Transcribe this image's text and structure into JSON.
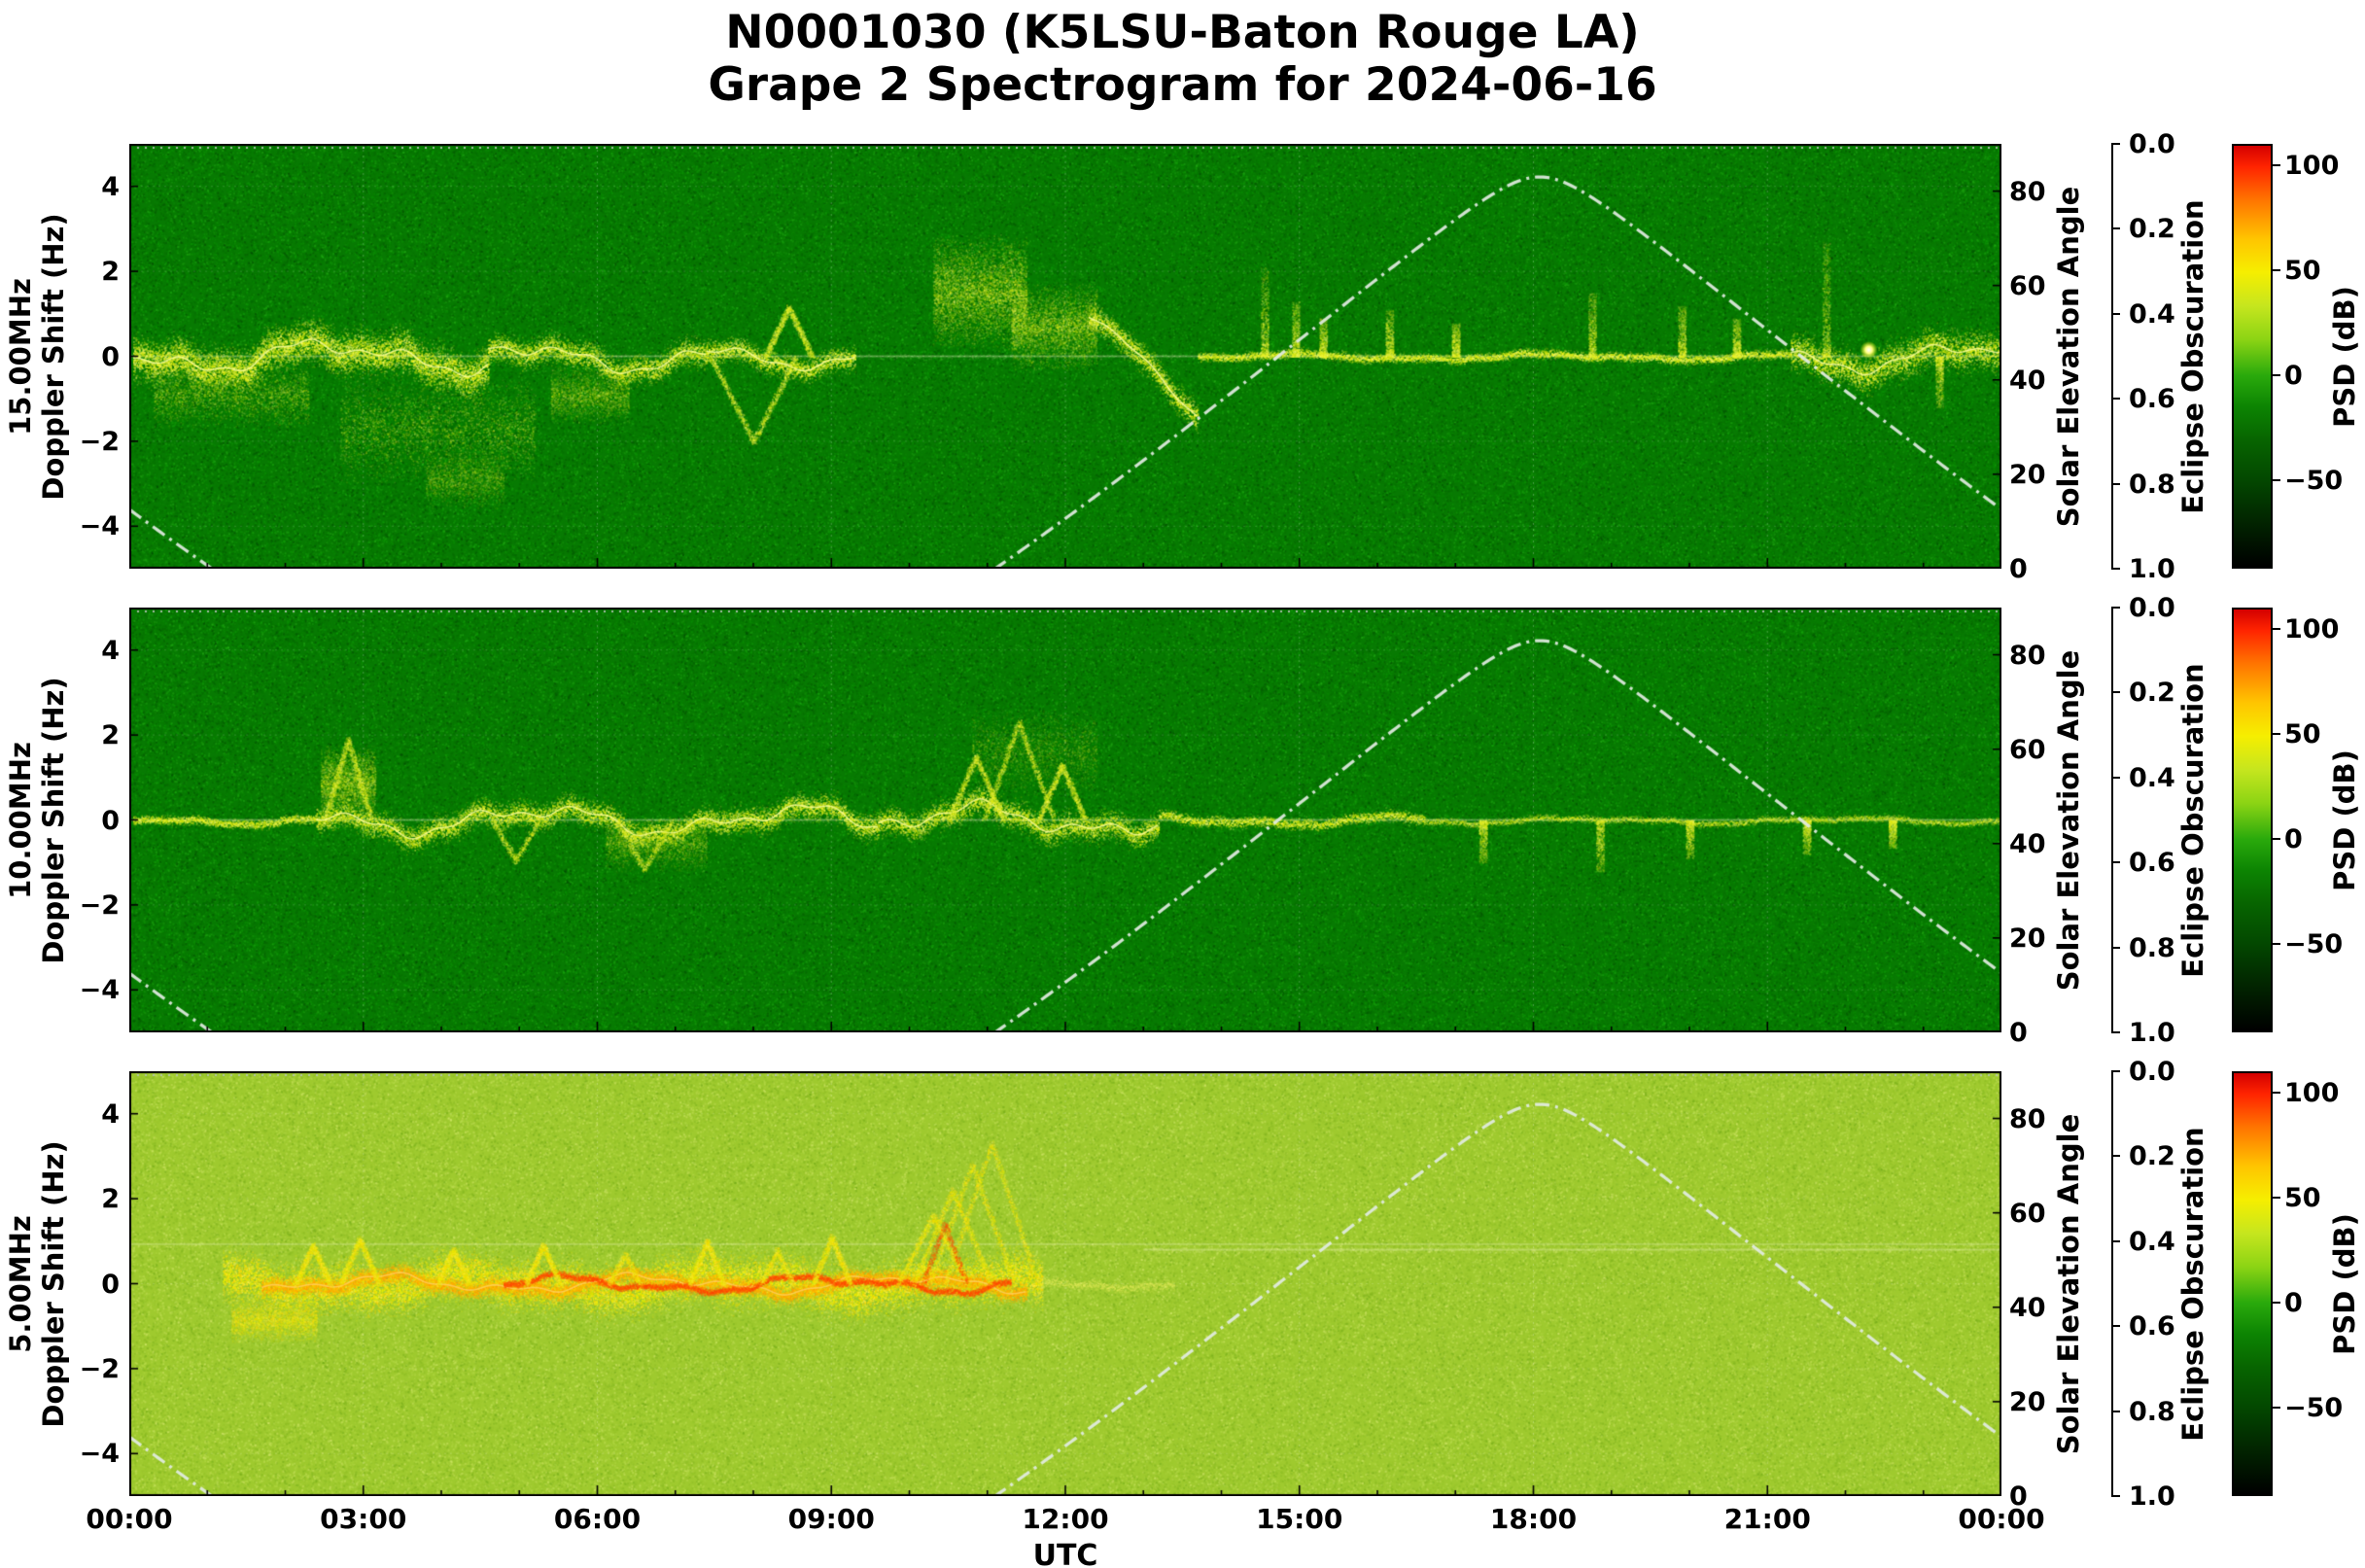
{
  "title": {
    "line1": "N0001030 (K5LSU-Baton Rouge LA)",
    "line2": "Grape 2 Spectrogram for 2024-06-16"
  },
  "x_axis": {
    "label": "UTC",
    "ticks": [
      "00:00",
      "03:00",
      "06:00",
      "09:00",
      "12:00",
      "15:00",
      "18:00",
      "21:00",
      "00:00"
    ],
    "tick_hours": [
      0,
      3,
      6,
      9,
      12,
      15,
      18,
      21,
      24
    ],
    "range_hours": [
      0,
      24
    ],
    "minor_tick_hours": 1
  },
  "right_axes": {
    "solar": {
      "label": "Solar Elevation Angle",
      "ticks": [
        0,
        20,
        40,
        60,
        80
      ],
      "lim": [
        0,
        90
      ]
    },
    "eclipse": {
      "label": "Eclipse Obscuration",
      "ticks": [
        "0.0",
        "0.2",
        "0.4",
        "0.6",
        "0.8",
        "1.0"
      ],
      "lim": [
        0,
        1
      ],
      "inverted": true
    }
  },
  "colorbar": {
    "label": "PSD (dB)",
    "ticks": [
      100,
      50,
      0,
      -50
    ],
    "vmin": -92,
    "vmax": 110,
    "gradient_stops": [
      [
        0,
        "#d40000"
      ],
      [
        0.05,
        "#ff2400"
      ],
      [
        0.13,
        "#ff7600"
      ],
      [
        0.22,
        "#ffc400"
      ],
      [
        0.3,
        "#f6ee00"
      ],
      [
        0.38,
        "#c6e61e"
      ],
      [
        0.46,
        "#8cd414"
      ],
      [
        0.545,
        "#2aaa0c"
      ],
      [
        0.62,
        "#0c8402"
      ],
      [
        0.7,
        "#076400"
      ],
      [
        0.787,
        "#034a00"
      ],
      [
        0.86,
        "#023000"
      ],
      [
        0.93,
        "#011800"
      ],
      [
        1,
        "#000000"
      ]
    ]
  },
  "solar_overlay": {
    "style": "dash-dot",
    "color": "#e2ece2",
    "model": {
      "latitude_deg": 30.4,
      "declination_deg": 23.4,
      "solar_noon_utc_h": 18.08
    },
    "keypoints_utc_elev": [
      [
        0,
        12
      ],
      [
        1.1,
        0
      ],
      [
        11.1,
        0
      ],
      [
        14,
        45
      ],
      [
        18.1,
        83
      ],
      [
        22,
        45
      ],
      [
        24,
        12
      ]
    ]
  },
  "eclipse_overlay": {
    "style": "dotted",
    "color": "#b6c2b6",
    "obscuration_value": 0.0
  },
  "chart_data": [
    {
      "type": "heatmap",
      "band_label": "15.00MHz",
      "ylabel": "Doppler Shift (Hz)",
      "ylim": [
        -5,
        5
      ],
      "yticks": [
        -4,
        -2,
        0,
        2,
        4
      ],
      "base_color": "#077a02",
      "speckle_colors": [
        "#0a9406",
        "#045c00",
        "#12a80a",
        "#033f00",
        "#2ab81a",
        "#066a00"
      ],
      "trace_colors": [
        "#eef216",
        "#d8ec10",
        "#f6fa70"
      ],
      "line_color": "#fbffa0",
      "features": [
        {
          "type": "faintline",
          "x0": 0,
          "x1": 24,
          "y": 0,
          "alpha": 0.3
        },
        {
          "type": "trace",
          "x0": 0.05,
          "x1": 4.6,
          "amp": 0.5,
          "spread": 0.45,
          "density": 22,
          "line": true,
          "seed": 3
        },
        {
          "type": "cloud",
          "x0": 0.3,
          "x1": 2.3,
          "yc": -0.9,
          "ry": 0.8,
          "density": 5,
          "alpha": 0.4
        },
        {
          "type": "cloud",
          "x0": 2.7,
          "x1": 5.2,
          "yc": -1.7,
          "ry": 1.3,
          "density": 6,
          "alpha": 0.42
        },
        {
          "type": "cloud",
          "x0": 3.8,
          "x1": 4.8,
          "yc": -2.9,
          "ry": 0.7,
          "density": 3,
          "alpha": 0.3
        },
        {
          "type": "trace",
          "x0": 4.6,
          "x1": 7.4,
          "amp": 0.45,
          "spread": 0.3,
          "density": 13,
          "line": true,
          "seed": 5
        },
        {
          "type": "cloud",
          "x0": 5.4,
          "x1": 6.4,
          "yc": -0.9,
          "ry": 0.7,
          "density": 4,
          "alpha": 0.35
        },
        {
          "type": "trace",
          "x0": 7.4,
          "x1": 9.3,
          "amp": 0.35,
          "spread": 0.25,
          "density": 12,
          "line": true,
          "seed": 7
        },
        {
          "type": "vee",
          "x": 8.0,
          "h": -2.0,
          "w": 0.55,
          "density": 2
        },
        {
          "type": "vee",
          "x": 8.45,
          "h": 1.15,
          "w": 0.3,
          "density": 2
        },
        {
          "type": "cloud",
          "x0": 10.3,
          "x1": 11.5,
          "yc": 1.5,
          "ry": 1.4,
          "density": 9,
          "alpha": 0.5
        },
        {
          "type": "cloud",
          "x0": 11.3,
          "x1": 12.4,
          "yc": 0.7,
          "ry": 1.1,
          "density": 7,
          "alpha": 0.45
        },
        {
          "type": "trace",
          "x0": 12.3,
          "x1": 13.7,
          "y0": 0.9,
          "slope": -1.6,
          "amp": 0.25,
          "spread": 0.3,
          "density": 14,
          "line": true,
          "seed": 9
        },
        {
          "type": "trace",
          "x0": 13.7,
          "x1": 21.3,
          "amp": 0.1,
          "spread": 0.1,
          "density": 7,
          "seed": 11
        },
        {
          "type": "spike",
          "x": 14.55,
          "h": 2.1
        },
        {
          "type": "spike",
          "x": 14.95,
          "h": 1.3
        },
        {
          "type": "spike",
          "x": 15.3,
          "h": 0.9
        },
        {
          "type": "spike",
          "x": 16.15,
          "h": 1.1
        },
        {
          "type": "spike",
          "x": 17.0,
          "h": 0.8
        },
        {
          "type": "spike",
          "x": 18.75,
          "h": 1.5
        },
        {
          "type": "spike",
          "x": 19.9,
          "h": 1.2
        },
        {
          "type": "spike",
          "x": 20.6,
          "h": 0.9
        },
        {
          "type": "trace",
          "x0": 21.3,
          "x1": 24,
          "amp": 0.45,
          "spread": 0.4,
          "density": 16,
          "line": true,
          "seed": 13
        },
        {
          "type": "spike",
          "x": 21.75,
          "h": 2.7
        },
        {
          "type": "spike",
          "x": 23.2,
          "h": -1.2
        },
        {
          "type": "dot",
          "x": 22.3,
          "y": 0.15
        }
      ]
    },
    {
      "type": "heatmap",
      "band_label": "10.00MHz",
      "ylabel": "Doppler Shift (Hz)",
      "ylim": [
        -5,
        5
      ],
      "yticks": [
        -4,
        -2,
        0,
        2,
        4
      ],
      "base_color": "#077a02",
      "speckle_colors": [
        "#0a9406",
        "#045c00",
        "#12a80a",
        "#033f00",
        "#2ab81a",
        "#066a00"
      ],
      "trace_colors": [
        "#e8ee14",
        "#d2e80e",
        "#f2f868"
      ],
      "line_color": "#f8fc98",
      "features": [
        {
          "type": "faintline",
          "x0": 0,
          "x1": 24,
          "y": 0,
          "alpha": 0.3
        },
        {
          "type": "trace",
          "x0": 0.05,
          "x1": 2.4,
          "amp": 0.12,
          "spread": 0.1,
          "density": 7,
          "seed": 21
        },
        {
          "type": "cloud",
          "x0": 2.45,
          "x1": 3.15,
          "yc": 0.9,
          "ry": 0.9,
          "density": 5,
          "alpha": 0.45
        },
        {
          "type": "vee",
          "x": 2.8,
          "h": 1.9,
          "w": 0.3,
          "density": 2
        },
        {
          "type": "trace",
          "x0": 2.4,
          "x1": 9.6,
          "amp": 0.45,
          "spread": 0.28,
          "density": 13,
          "line": true,
          "seed": 23
        },
        {
          "type": "vee",
          "x": 4.95,
          "h": -0.95,
          "w": 0.3,
          "density": 1
        },
        {
          "type": "cloud",
          "x0": 6.1,
          "x1": 7.4,
          "yc": -0.55,
          "ry": 0.7,
          "density": 4,
          "alpha": 0.35
        },
        {
          "type": "vee",
          "x": 6.6,
          "h": -1.15,
          "w": 0.35,
          "density": 1
        },
        {
          "type": "trace",
          "x0": 9.6,
          "x1": 13.2,
          "amp": 0.5,
          "spread": 0.3,
          "density": 13,
          "line": true,
          "seed": 25
        },
        {
          "type": "vee",
          "x": 10.85,
          "h": 1.5,
          "w": 0.35,
          "density": 2
        },
        {
          "type": "vee",
          "x": 11.4,
          "h": 2.3,
          "w": 0.45,
          "density": 2
        },
        {
          "type": "vee",
          "x": 11.95,
          "h": 1.3,
          "w": 0.3,
          "density": 2
        },
        {
          "type": "cloud",
          "x0": 10.8,
          "x1": 12.4,
          "yc": 1.6,
          "ry": 1.1,
          "density": 4,
          "alpha": 0.3
        },
        {
          "type": "trace",
          "x0": 13.2,
          "x1": 16.6,
          "amp": 0.15,
          "spread": 0.12,
          "density": 7,
          "seed": 27
        },
        {
          "type": "trace",
          "x0": 16.6,
          "x1": 24,
          "amp": 0.1,
          "spread": 0.08,
          "density": 5,
          "alpha": 0.7,
          "seed": 29
        },
        {
          "type": "spike",
          "x": 17.35,
          "h": -1.0
        },
        {
          "type": "spike",
          "x": 18.85,
          "h": -1.2
        },
        {
          "type": "spike",
          "x": 20.0,
          "h": -0.9
        },
        {
          "type": "spike",
          "x": 21.5,
          "h": -0.8
        },
        {
          "type": "spike",
          "x": 22.6,
          "h": -0.65
        }
      ]
    },
    {
      "type": "heatmap",
      "band_label": "5.00MHz",
      "ylabel": "Doppler Shift  (Hz)",
      "ylim": [
        -5,
        5
      ],
      "yticks": [
        -4,
        -2,
        0,
        2,
        4
      ],
      "base_color": "#9fca2e",
      "speckle_colors": [
        "#7fb31c",
        "#b9dd49",
        "#c8e85e",
        "#6aa513",
        "#e0ee7a",
        "#8fc024"
      ],
      "trace_colors": [
        "#f2f200",
        "#ffd400",
        "#dce800",
        "#ffee40"
      ],
      "line_color": "#fff2a0",
      "features": [
        {
          "type": "faintline",
          "x0": 0,
          "x1": 24,
          "y": 0.93,
          "alpha": 0.25
        },
        {
          "type": "faintline",
          "x0": 13,
          "x1": 24,
          "y": 0.8,
          "alpha": 0.3
        },
        {
          "type": "trace",
          "x0": 1.2,
          "x1": 11.7,
          "amp": 0.28,
          "spread": 0.55,
          "density": 24,
          "seed": 31
        },
        {
          "type": "cloud",
          "x0": 1.3,
          "x1": 2.4,
          "yc": -0.85,
          "ry": 0.55,
          "density": 6,
          "alpha": 0.5
        },
        {
          "type": "trace",
          "x0": 1.7,
          "x1": 11.5,
          "amp": 0.28,
          "spread": 0.2,
          "density": 15,
          "colors": [
            "#ff9800",
            "#ffb400",
            "#ffcc00"
          ],
          "line": true,
          "lineColor": "#ffd060",
          "seed": 33
        },
        {
          "type": "trace",
          "x0": 4.8,
          "x1": 11.3,
          "amp": 0.26,
          "spread": 0.08,
          "density": 9,
          "colors": [
            "#ff4000",
            "#ff6200"
          ],
          "seed": 35
        },
        {
          "type": "vee",
          "x": 2.35,
          "h": 0.9,
          "w": 0.22,
          "density": 2
        },
        {
          "type": "vee",
          "x": 2.95,
          "h": 1.05,
          "w": 0.25,
          "density": 2
        },
        {
          "type": "vee",
          "x": 4.15,
          "h": 0.8,
          "w": 0.2,
          "density": 2
        },
        {
          "type": "vee",
          "x": 5.3,
          "h": 0.9,
          "w": 0.22,
          "density": 2
        },
        {
          "type": "vee",
          "x": 6.35,
          "h": 0.7,
          "w": 0.2,
          "density": 1
        },
        {
          "type": "vee",
          "x": 7.4,
          "h": 1.0,
          "w": 0.22,
          "density": 2
        },
        {
          "type": "vee",
          "x": 8.3,
          "h": 0.8,
          "w": 0.2,
          "density": 1
        },
        {
          "type": "vee",
          "x": 9.0,
          "h": 1.1,
          "w": 0.24,
          "density": 2
        },
        {
          "type": "vee",
          "x": 10.3,
          "h": 1.6,
          "w": 0.45,
          "density": 2
        },
        {
          "type": "vee",
          "x": 10.55,
          "h": 2.2,
          "w": 0.5,
          "density": 2
        },
        {
          "type": "vee",
          "x": 10.8,
          "h": 2.8,
          "w": 0.55,
          "density": 2
        },
        {
          "type": "vee",
          "x": 11.05,
          "h": 3.3,
          "w": 0.6,
          "density": 2
        },
        {
          "type": "vee",
          "x": 10.45,
          "h": 1.4,
          "w": 0.28,
          "density": 1,
          "colors": [
            "#ff5000"
          ]
        },
        {
          "type": "trace",
          "x0": 11.7,
          "x1": 13.4,
          "amp": 0.1,
          "spread": 0.12,
          "density": 6,
          "alpha": 0.5,
          "colors": [
            "#eef060"
          ],
          "seed": 37
        }
      ]
    }
  ]
}
